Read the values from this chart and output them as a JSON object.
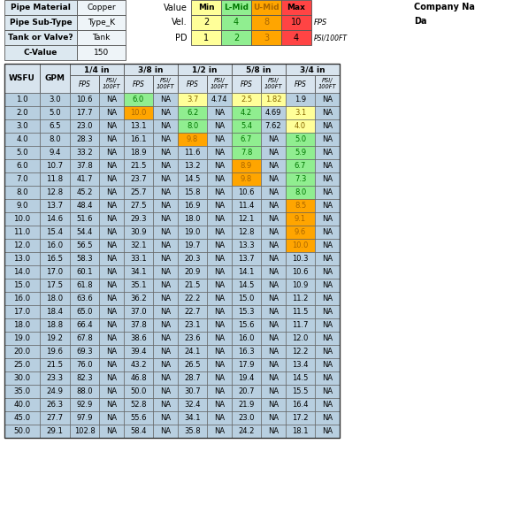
{
  "info_labels": [
    "Pipe Material",
    "Pipe Sub-Type",
    "Tank or Valve?",
    "C-Value"
  ],
  "info_values": [
    "Copper",
    "Type_K",
    "Tank",
    "150"
  ],
  "legend_cols": [
    "Min",
    "L-Mid",
    "U-Mid",
    "Max"
  ],
  "vel_values": [
    "2",
    "4",
    "8",
    "10"
  ],
  "pd_values": [
    "1",
    "2",
    "3",
    "4"
  ],
  "pipe_sizes": [
    "1/4 in",
    "3/8 in",
    "1/2 in",
    "5/8 in",
    "3/4 in"
  ],
  "company_label": "Company Na",
  "date_label": "Da",
  "table_data": [
    [
      1.0,
      3.0,
      10.6,
      "NA",
      6.0,
      "NA",
      3.7,
      4.74,
      2.5,
      1.82,
      1.9,
      "NA"
    ],
    [
      2.0,
      5.0,
      17.7,
      "NA",
      10.0,
      "NA",
      6.2,
      "NA",
      4.2,
      4.69,
      3.1,
      "NA"
    ],
    [
      3.0,
      6.5,
      23.0,
      "NA",
      13.1,
      "NA",
      8.0,
      "NA",
      5.4,
      7.62,
      4.0,
      "NA"
    ],
    [
      4.0,
      8.0,
      28.3,
      "NA",
      16.1,
      "NA",
      9.8,
      "NA",
      6.7,
      "NA",
      5.0,
      "NA"
    ],
    [
      5.0,
      9.4,
      33.2,
      "NA",
      18.9,
      "NA",
      11.6,
      "NA",
      7.8,
      "NA",
      5.9,
      "NA"
    ],
    [
      6.0,
      10.7,
      37.8,
      "NA",
      21.5,
      "NA",
      13.2,
      "NA",
      8.9,
      "NA",
      6.7,
      "NA"
    ],
    [
      7.0,
      11.8,
      41.7,
      "NA",
      23.7,
      "NA",
      14.5,
      "NA",
      9.8,
      "NA",
      7.3,
      "NA"
    ],
    [
      8.0,
      12.8,
      45.2,
      "NA",
      25.7,
      "NA",
      15.8,
      "NA",
      10.6,
      "NA",
      8.0,
      "NA"
    ],
    [
      9.0,
      13.7,
      48.4,
      "NA",
      27.5,
      "NA",
      16.9,
      "NA",
      11.4,
      "NA",
      8.5,
      "NA"
    ],
    [
      10.0,
      14.6,
      51.6,
      "NA",
      29.3,
      "NA",
      18.0,
      "NA",
      12.1,
      "NA",
      9.1,
      "NA"
    ],
    [
      11.0,
      15.4,
      54.4,
      "NA",
      30.9,
      "NA",
      19.0,
      "NA",
      12.8,
      "NA",
      9.6,
      "NA"
    ],
    [
      12.0,
      16.0,
      56.5,
      "NA",
      32.1,
      "NA",
      19.7,
      "NA",
      13.3,
      "NA",
      10.0,
      "NA"
    ],
    [
      13.0,
      16.5,
      58.3,
      "NA",
      33.1,
      "NA",
      20.3,
      "NA",
      13.7,
      "NA",
      10.3,
      "NA"
    ],
    [
      14.0,
      17.0,
      60.1,
      "NA",
      34.1,
      "NA",
      20.9,
      "NA",
      14.1,
      "NA",
      10.6,
      "NA"
    ],
    [
      15.0,
      17.5,
      61.8,
      "NA",
      35.1,
      "NA",
      21.5,
      "NA",
      14.5,
      "NA",
      10.9,
      "NA"
    ],
    [
      16.0,
      18.0,
      63.6,
      "NA",
      36.2,
      "NA",
      22.2,
      "NA",
      15.0,
      "NA",
      11.2,
      "NA"
    ],
    [
      17.0,
      18.4,
      65.0,
      "NA",
      37.0,
      "NA",
      22.7,
      "NA",
      15.3,
      "NA",
      11.5,
      "NA"
    ],
    [
      18.0,
      18.8,
      66.4,
      "NA",
      37.8,
      "NA",
      23.1,
      "NA",
      15.6,
      "NA",
      11.7,
      "NA"
    ],
    [
      19.0,
      19.2,
      67.8,
      "NA",
      38.6,
      "NA",
      23.6,
      "NA",
      16.0,
      "NA",
      12.0,
      "NA"
    ],
    [
      20.0,
      19.6,
      69.3,
      "NA",
      39.4,
      "NA",
      24.1,
      "NA",
      16.3,
      "NA",
      12.2,
      "NA"
    ],
    [
      25.0,
      21.5,
      76.0,
      "NA",
      43.2,
      "NA",
      26.5,
      "NA",
      17.9,
      "NA",
      13.4,
      "NA"
    ],
    [
      30.0,
      23.3,
      82.3,
      "NA",
      46.8,
      "NA",
      28.7,
      "NA",
      19.4,
      "NA",
      14.5,
      "NA"
    ],
    [
      35.0,
      24.9,
      88.0,
      "NA",
      50.0,
      "NA",
      30.7,
      "NA",
      20.7,
      "NA",
      15.5,
      "NA"
    ],
    [
      40.0,
      26.3,
      92.9,
      "NA",
      52.8,
      "NA",
      32.4,
      "NA",
      21.9,
      "NA",
      16.4,
      "NA"
    ],
    [
      45.0,
      27.7,
      97.9,
      "NA",
      55.6,
      "NA",
      34.1,
      "NA",
      23.0,
      "NA",
      17.2,
      "NA"
    ],
    [
      50.0,
      29.1,
      102.8,
      "NA",
      58.4,
      "NA",
      35.8,
      "NA",
      24.2,
      "NA",
      18.1,
      "NA"
    ]
  ],
  "col_yellow": "#ffff99",
  "col_lgreen": "#90ee90",
  "col_orange": "#ffa500",
  "col_red": "#ff4444",
  "col_lblue": "#b8cfe0",
  "col_hdr": "#d8e4ee",
  "col_white": "#ffffff",
  "vel_thresholds": [
    2,
    4,
    8,
    10
  ],
  "pd_thresholds": [
    1,
    2,
    3,
    4
  ]
}
